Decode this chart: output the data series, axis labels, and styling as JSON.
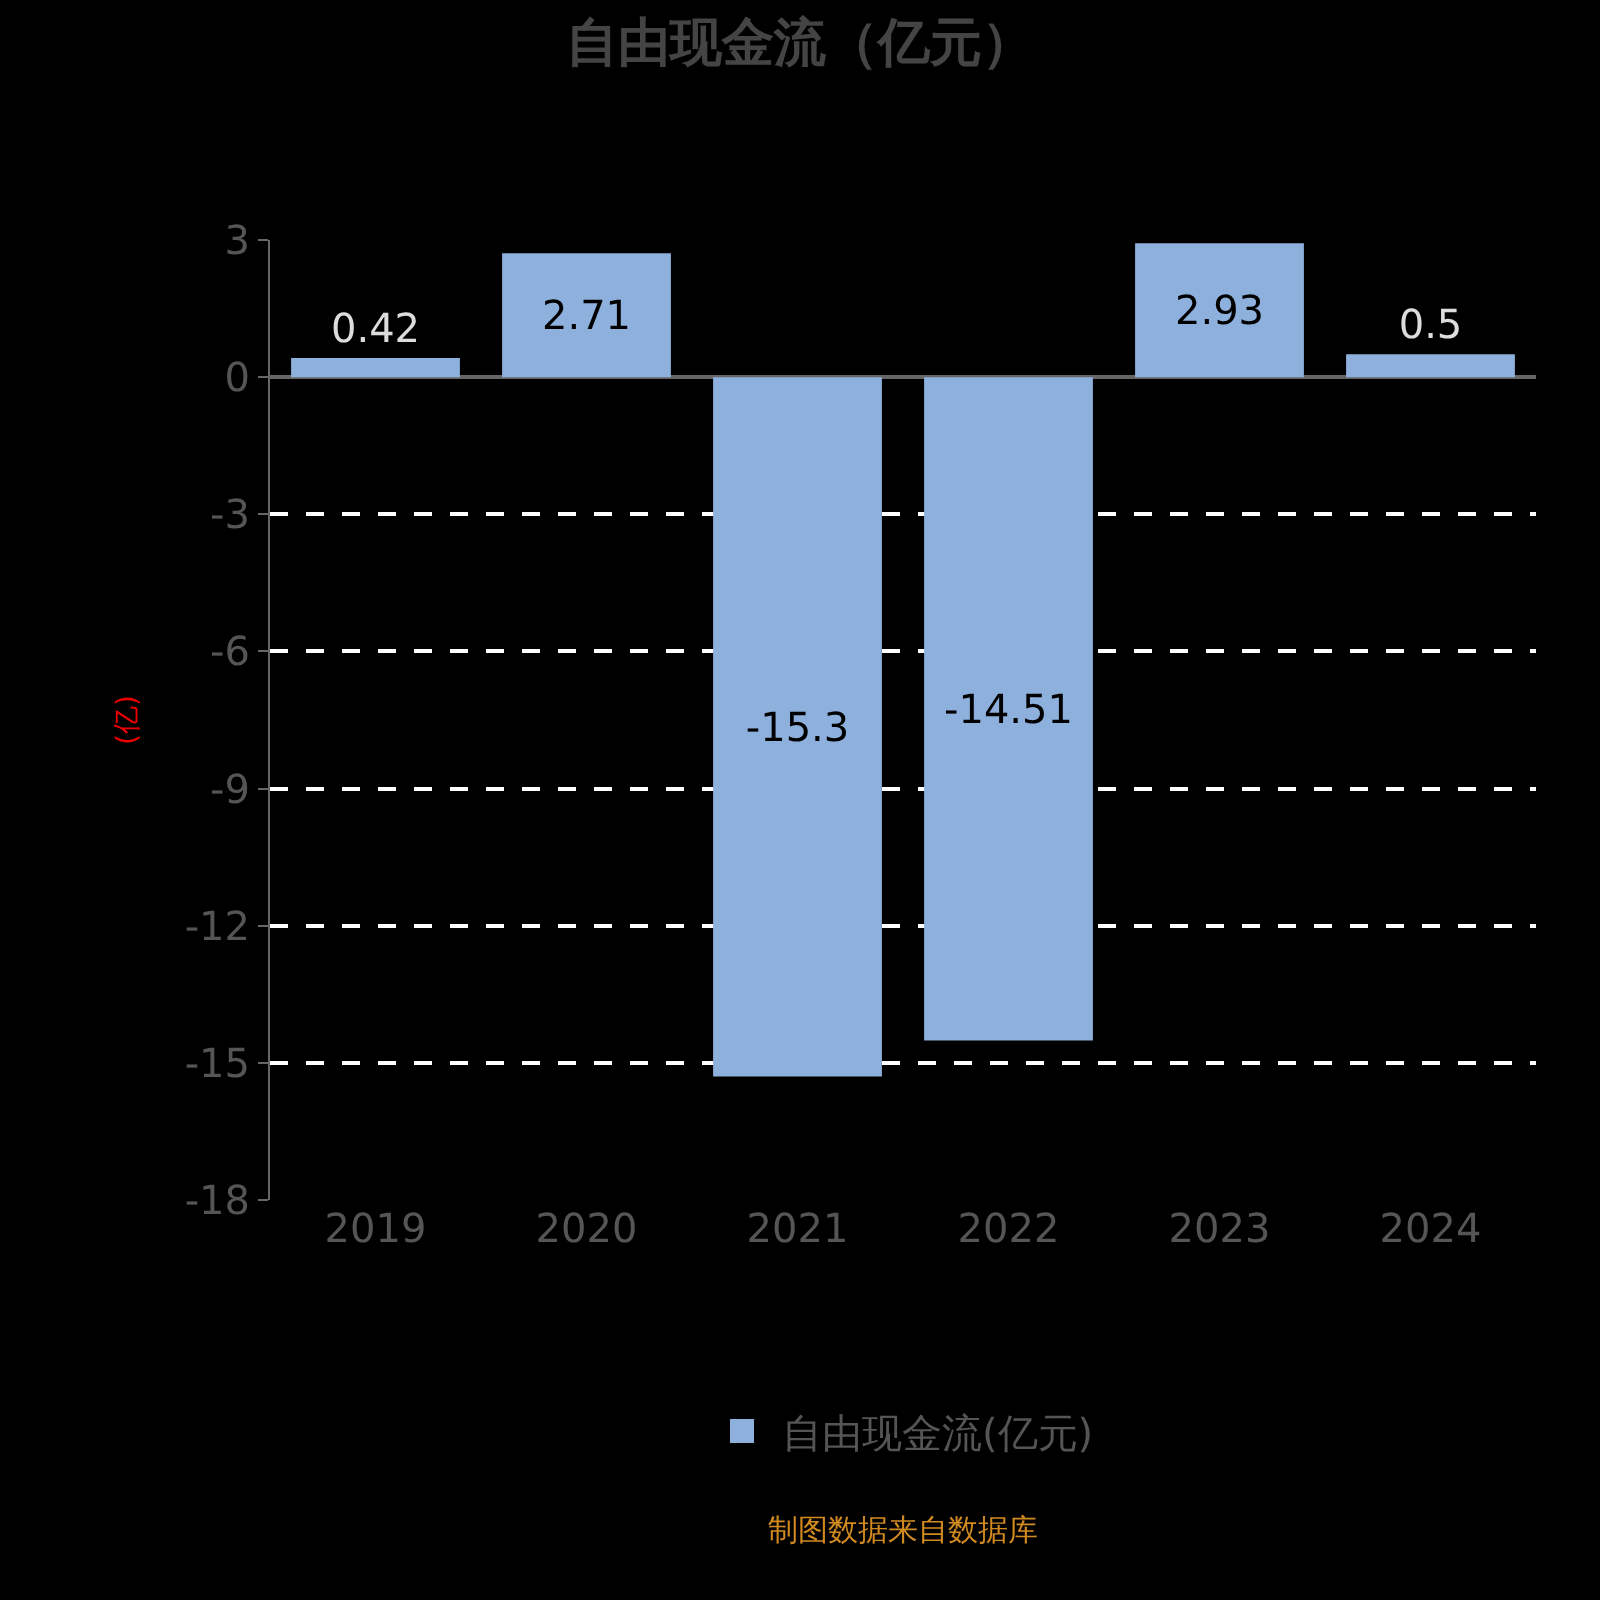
{
  "chart_data": {
    "type": "bar",
    "title": "自由现金流（亿元）",
    "ylabel": "(亿)",
    "categories": [
      "2019",
      "2020",
      "2021",
      "2022",
      "2023",
      "2024"
    ],
    "series": [
      {
        "name": "自由现金流(亿元)",
        "color": "#8eb0dd",
        "values": [
          0.42,
          2.71,
          -15.3,
          -14.51,
          2.93,
          0.5
        ]
      }
    ],
    "ylim": [
      -18,
      3
    ],
    "yticks": [
      -18,
      -15,
      -12,
      -9,
      -6,
      -3,
      0,
      3
    ],
    "grid": "y",
    "legend": "bottom",
    "data_labels": true,
    "annotations": [
      "制图数据来自数据库"
    ]
  }
}
